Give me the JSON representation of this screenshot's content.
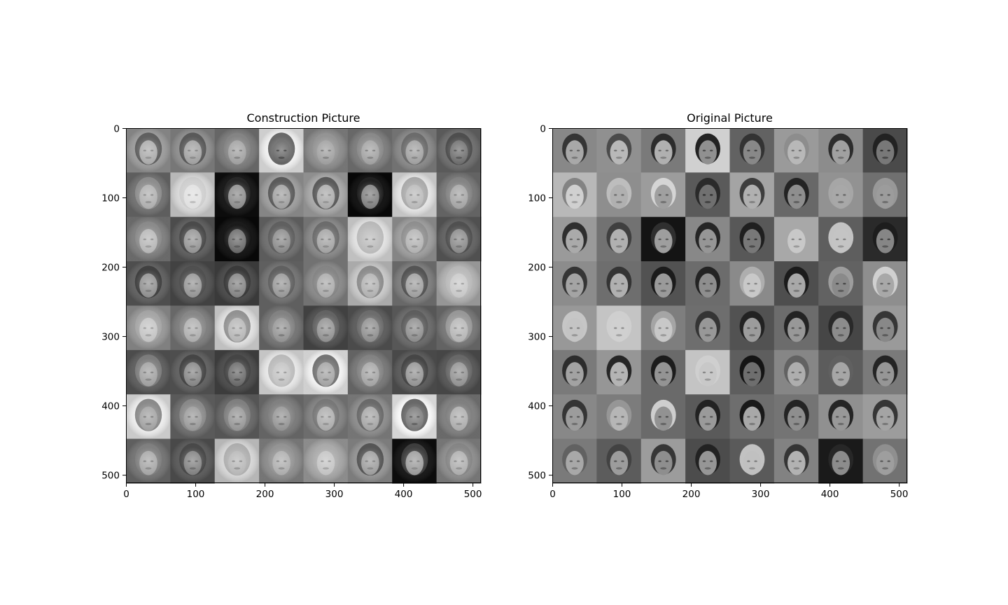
{
  "chart_data": [
    {
      "type": "heatmap",
      "title": "Construction Picture",
      "colormap": "gray",
      "xlim": [
        0,
        512
      ],
      "ylim": [
        512,
        0
      ],
      "xticks": [
        0,
        100,
        200,
        300,
        400,
        500
      ],
      "yticks": [
        0,
        100,
        200,
        300,
        400,
        500
      ],
      "grid": false,
      "tile_grid": {
        "rows": 8,
        "cols": 8,
        "tile_size": 64
      }
    },
    {
      "type": "heatmap",
      "title": "Original Picture",
      "colormap": "gray",
      "xlim": [
        0,
        512
      ],
      "ylim": [
        512,
        0
      ],
      "xticks": [
        0,
        100,
        200,
        300,
        400,
        500
      ],
      "yticks": [
        0,
        100,
        200,
        300,
        400,
        500
      ],
      "grid": false,
      "tile_grid": {
        "rows": 8,
        "cols": 8,
        "tile_size": 64
      }
    }
  ]
}
